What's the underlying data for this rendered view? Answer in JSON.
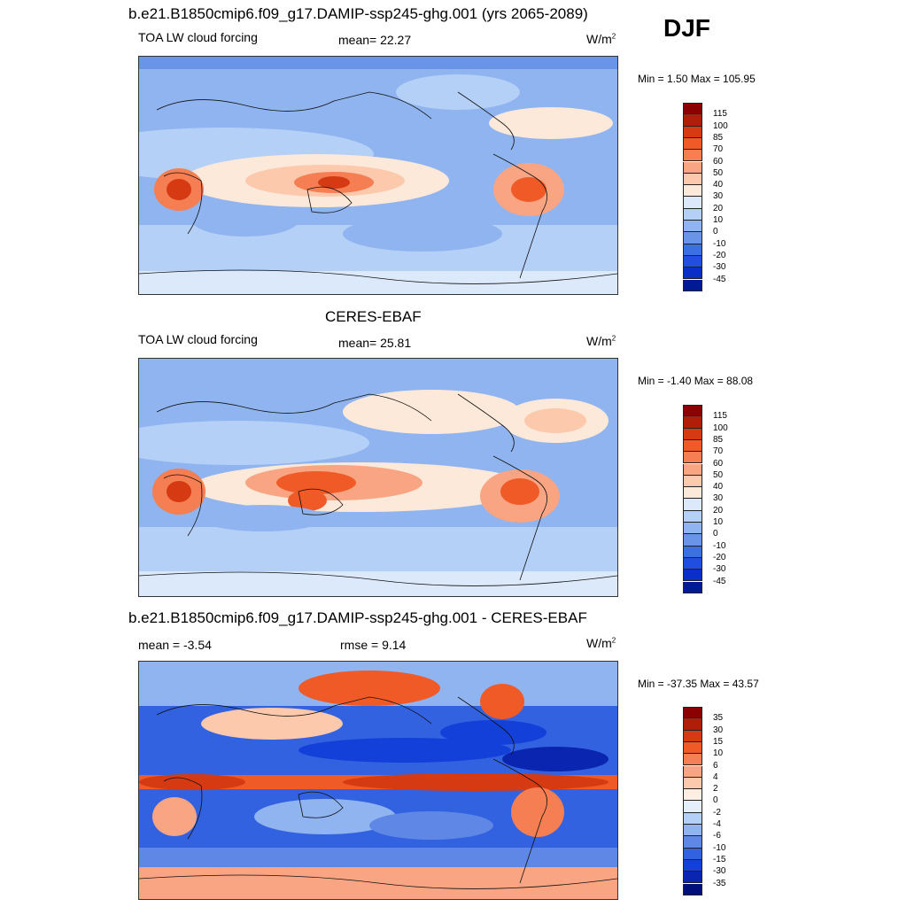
{
  "season": "DJF",
  "units_base": "W/m",
  "units_exp": "2",
  "panels": [
    {
      "title": "b.e21.B1850cmip6.f09_g17.DAMIP-ssp245-ghg.001 (yrs 2065-2089)",
      "left_label": "TOA LW cloud forcing",
      "stat_text": "mean=  22.27",
      "minmax": "Min =   1.50 Max = 105.95",
      "levels": [
        "115",
        "100",
        "85",
        "70",
        "60",
        "50",
        "40",
        "30",
        "20",
        "10",
        "0",
        "-10",
        "-20",
        "-30",
        "-45"
      ],
      "colors": [
        "#8b0000",
        "#b01e0a",
        "#d63a12",
        "#f05a26",
        "#f57e52",
        "#f9a584",
        "#fcc9ad",
        "#fde9d9",
        "#dbe9fb",
        "#b4d0f6",
        "#8fb4ef",
        "#6a94e8",
        "#3c6fe2",
        "#1f4ee0",
        "#0b2fc6",
        "#001a96"
      ]
    },
    {
      "title": "CERES-EBAF",
      "left_label": "TOA LW cloud forcing",
      "stat_text": "mean=  25.81",
      "minmax": "Min =  -1.40 Max =  88.08",
      "levels": [
        "115",
        "100",
        "85",
        "70",
        "60",
        "50",
        "40",
        "30",
        "20",
        "10",
        "0",
        "-10",
        "-20",
        "-30",
        "-45"
      ],
      "colors": [
        "#8b0000",
        "#b01e0a",
        "#d63a12",
        "#f05a26",
        "#f57e52",
        "#f9a584",
        "#fcc9ad",
        "#fde9d9",
        "#dbe9fb",
        "#b4d0f6",
        "#8fb4ef",
        "#6a94e8",
        "#3c6fe2",
        "#1f4ee0",
        "#0b2fc6",
        "#001a96"
      ]
    },
    {
      "title": "b.e21.B1850cmip6.f09_g17.DAMIP-ssp245-ghg.001 - CERES-EBAF",
      "left_label": "mean =  -3.54",
      "stat_text": "rmse =    9.14",
      "minmax": "Min = -37.35 Max =  43.57",
      "levels": [
        "35",
        "30",
        "15",
        "10",
        "6",
        "4",
        "2",
        "0",
        "-2",
        "-4",
        "-6",
        "-10",
        "-15",
        "-30",
        "-35"
      ],
      "colors": [
        "#8b0000",
        "#b01e0a",
        "#d63a12",
        "#f05a26",
        "#f57e52",
        "#f9a584",
        "#fcc9ad",
        "#fdeee4",
        "#e4eefc",
        "#b4d0f6",
        "#8fb4ef",
        "#5f88e6",
        "#3362e0",
        "#1340d8",
        "#0a26b0",
        "#00107a"
      ]
    }
  ]
}
